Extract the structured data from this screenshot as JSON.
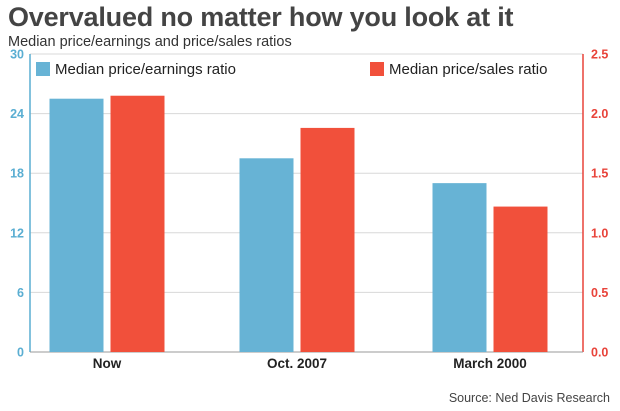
{
  "header": {
    "title": "Overvalued no matter how you look at it",
    "subtitle": "Median price/earnings and price/sales ratios"
  },
  "footer": {
    "source": "Source: Ned Davis Research"
  },
  "colors": {
    "pe": "#67b3d5",
    "ps": "#f1503b",
    "left_axis": "#5aaed2",
    "right_axis": "#e8433a",
    "grid": "#d8d8d8"
  },
  "chart_data": {
    "type": "bar",
    "title": "Overvalued no matter how you look at it",
    "subtitle": "Median price/earnings and price/sales ratios",
    "categories": [
      "Now",
      "Oct. 2007",
      "March 2000"
    ],
    "series": [
      {
        "name": "Median price/earnings ratio",
        "axis": "left",
        "values": [
          25.5,
          19.5,
          17.0
        ]
      },
      {
        "name": "Median price/sales ratio",
        "axis": "right",
        "values": [
          2.15,
          1.88,
          1.22
        ]
      }
    ],
    "y_left": {
      "range": [
        0,
        30
      ],
      "ticks": [
        "0",
        "6",
        "12",
        "18",
        "24",
        "30"
      ]
    },
    "y_right": {
      "range": [
        0,
        2.5
      ],
      "ticks": [
        "0.0",
        "0.5",
        "1.0",
        "1.5",
        "2.0",
        "2.5"
      ]
    },
    "grid": true,
    "legend_position": "top"
  }
}
